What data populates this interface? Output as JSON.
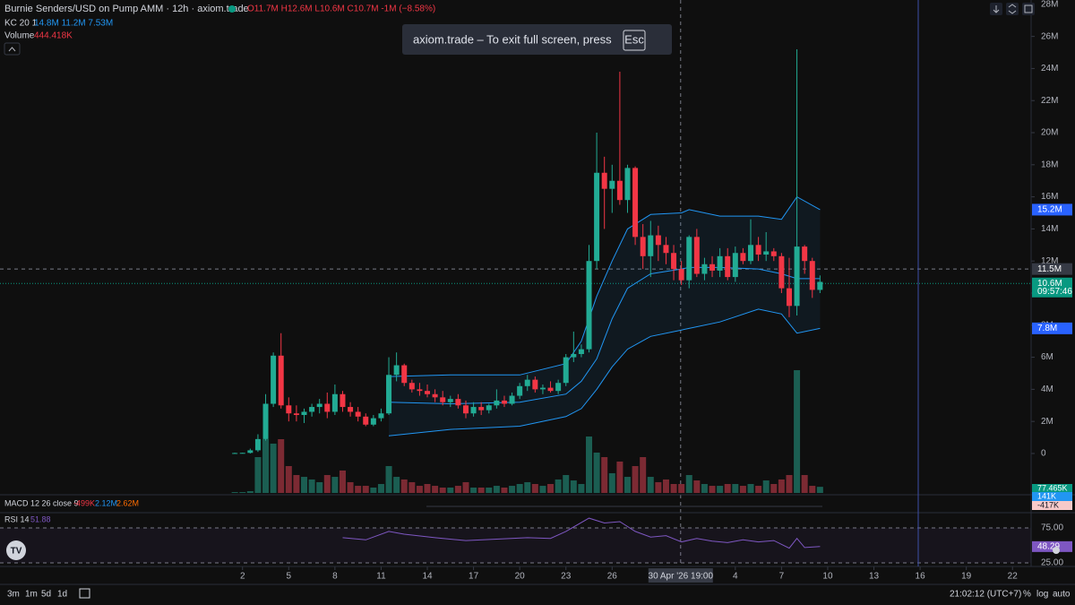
{
  "chart_data": {
    "type": "candlestick",
    "title": "Burnie Senders/USD on Pump AMM · 12h · axiom.trade",
    "ohlc_legend": "O11.7M H12.6M L10.6M C10.7M -1M (−8.58%)",
    "kc_legend": "KC 20 1",
    "kc_values": "14.8M 11.2M 7.53M",
    "volume_legend": "Volume",
    "volume_value": "444.418K",
    "macd_legend": "MACD 12 26 close 9",
    "macd_hist": "-499K",
    "macd_line": "2.12M",
    "macd_signal": "2.62M",
    "rsi_legend": "RSI 14",
    "rsi_value": "51.88",
    "up_color": "#22ab94",
    "down_color": "#f23645",
    "up_volume_color": "#1b5e52",
    "down_volume_color": "#7c2a33",
    "ylim": [
      -2.46,
      28.27
    ],
    "yticks": [
      0,
      {
        "value": 2,
        "label": "2M"
      },
      {
        "value": 4,
        "label": "4M"
      },
      {
        "value": 6,
        "label": "6M"
      },
      {
        "value": 8,
        "label": "8M"
      },
      {
        "value": 10,
        "label": "10M"
      },
      {
        "value": 12,
        "label": "12M"
      },
      {
        "value": 14,
        "label": "14M"
      },
      {
        "value": 16,
        "label": "16M"
      },
      {
        "value": 18,
        "label": "18M"
      },
      {
        "value": 20,
        "label": "20M"
      },
      {
        "value": 22,
        "label": "22M"
      },
      {
        "value": 24,
        "label": "24M"
      },
      {
        "value": 26,
        "label": "26M"
      },
      {
        "value": 28,
        "label": "28M"
      }
    ],
    "xlim": [
      -30.5,
      103.3
    ],
    "xticks": [
      {
        "value": 1,
        "label": "2"
      },
      {
        "value": 7,
        "label": "5"
      },
      {
        "value": 13,
        "label": "8"
      },
      {
        "value": 19,
        "label": "11"
      },
      {
        "value": 25,
        "label": "14"
      },
      {
        "value": 31,
        "label": "17"
      },
      {
        "value": 37,
        "label": "20"
      },
      {
        "value": 43,
        "label": "23"
      },
      {
        "value": 49,
        "label": "26"
      },
      {
        "value": 65,
        "label": "4"
      },
      {
        "value": 71,
        "label": "7"
      },
      {
        "value": 77,
        "label": "10"
      },
      {
        "value": 83,
        "label": "13"
      },
      {
        "value": 89,
        "label": "16"
      },
      {
        "value": 95,
        "label": "19"
      },
      {
        "value": 101,
        "label": "22"
      }
    ],
    "crosshair_x": {
      "value": 57.9,
      "label": "30 Apr '26   19:00"
    },
    "candles": {
      "open": [
        0.02,
        0.03,
        0.04,
        0.2,
        0.9,
        3.1,
        6.1,
        3.0,
        2.5,
        2.4,
        2.6,
        2.9,
        3.1,
        2.6,
        3.7,
        2.9,
        2.6,
        2.3,
        1.8,
        2.2,
        2.5,
        4.9,
        5.5,
        4.4,
        4.0,
        3.9,
        3.7,
        3.5,
        3.2,
        3.4,
        3.0,
        2.5,
        2.9,
        2.7,
        3.0,
        3.3,
        3.1,
        3.6,
        4.2,
        4.6,
        4.0,
        4.1,
        3.9,
        4.4,
        6.0,
        6.2,
        6.5,
        12.0,
        17.5,
        16.5,
        17.0,
        15.8,
        17.8,
        13.5,
        12.3,
        13.6,
        13.0,
        12.5,
        11.5,
        10.8,
        13.5,
        11.2,
        11.8,
        11.4,
        12.3,
        11.0,
        12.5,
        12.0,
        13.0,
        12.4,
        12.6,
        12.3,
        10.3,
        9.2,
        12.9,
        12.0,
        10.2
      ],
      "high": [
        0.05,
        0.05,
        0.3,
        1.2,
        3.7,
        6.3,
        7.5,
        3.5,
        3.0,
        2.8,
        3.1,
        3.4,
        3.8,
        4.3,
        3.9,
        3.2,
        2.9,
        2.5,
        2.4,
        2.8,
        6.0,
        6.3,
        5.6,
        4.6,
        4.4,
        4.3,
        4.0,
        3.9,
        3.6,
        3.7,
        3.3,
        3.2,
        3.2,
        3.1,
        4.0,
        3.6,
        3.8,
        4.4,
        4.9,
        4.8,
        4.3,
        4.5,
        4.6,
        6.2,
        7.6,
        6.8,
        13.0,
        20.0,
        18.5,
        18.0,
        23.8,
        18.0,
        17.9,
        14.3,
        14.5,
        14.2,
        13.5,
        13.0,
        12.0,
        13.6,
        14.0,
        12.2,
        12.3,
        12.8,
        12.8,
        12.9,
        12.8,
        14.6,
        13.5,
        13.8,
        12.8,
        12.5,
        12.2,
        25.2,
        13.0,
        12.2,
        11.1
      ],
      "low": [
        0,
        0,
        0,
        0.1,
        0.8,
        2.9,
        2.8,
        2.0,
        2.0,
        1.9,
        2.3,
        2.5,
        2.2,
        2.4,
        2.6,
        2.3,
        2.0,
        1.7,
        1.7,
        2.0,
        2.4,
        4.5,
        4.2,
        3.8,
        3.6,
        3.5,
        3.2,
        3.0,
        2.9,
        2.8,
        2.2,
        2.3,
        2.4,
        2.5,
        2.8,
        2.9,
        3.0,
        3.4,
        3.9,
        3.8,
        3.7,
        3.8,
        3.7,
        4.2,
        5.7,
        6.0,
        6.3,
        11.5,
        14.0,
        15.0,
        15.5,
        15.0,
        13.0,
        11.5,
        11.0,
        12.0,
        11.8,
        10.8,
        10.5,
        10.3,
        11.0,
        10.8,
        11.0,
        11.0,
        10.8,
        10.7,
        11.8,
        11.8,
        12.0,
        12.0,
        12.0,
        10.0,
        8.5,
        8.6,
        11.2,
        9.7,
        10.0
      ],
      "close": [
        0.03,
        0.04,
        0.2,
        0.9,
        3.1,
        6.1,
        3.0,
        2.5,
        2.4,
        2.6,
        2.9,
        3.1,
        2.6,
        3.7,
        2.9,
        2.6,
        2.3,
        1.8,
        2.2,
        2.5,
        4.9,
        5.5,
        4.4,
        4.0,
        3.9,
        3.7,
        3.5,
        3.2,
        3.4,
        3.0,
        2.5,
        2.9,
        2.7,
        3.0,
        3.3,
        3.1,
        3.6,
        4.2,
        4.6,
        4.0,
        4.1,
        3.9,
        4.4,
        6.0,
        6.2,
        6.5,
        12.0,
        17.5,
        16.5,
        17.0,
        15.8,
        17.8,
        13.5,
        12.3,
        13.6,
        13.0,
        12.5,
        11.5,
        10.8,
        13.5,
        11.2,
        11.8,
        11.4,
        12.3,
        11.0,
        12.5,
        12.0,
        13.0,
        12.4,
        12.6,
        12.3,
        10.3,
        9.2,
        12.9,
        12.0,
        10.2,
        10.7
      ]
    },
    "volume": [
      11,
      11,
      23,
      452,
      678,
      622,
      678,
      339,
      226,
      203,
      170,
      136,
      226,
      203,
      283,
      136,
      90,
      90,
      68,
      113,
      339,
      203,
      170,
      136,
      90,
      113,
      90,
      68,
      68,
      90,
      136,
      68,
      68,
      68,
      90,
      68,
      90,
      113,
      136,
      113,
      90,
      113,
      170,
      226,
      158,
      113,
      712,
      509,
      452,
      249,
      396,
      203,
      339,
      452,
      203,
      136,
      170,
      113,
      113,
      226,
      158,
      113,
      90,
      90,
      113,
      113,
      90,
      113,
      90,
      158,
      113,
      170,
      226,
      1548,
      226,
      90,
      77.465
    ],
    "vlim": [
      0,
      1695
    ],
    "kc": {
      "color": "#2196f3",
      "x": [
        20,
        28,
        37,
        43,
        45,
        47,
        49,
        51,
        54,
        58,
        59,
        63,
        68,
        71,
        73,
        76
      ],
      "upper": [
        4.8,
        4.9,
        4.9,
        5.6,
        7.0,
        9.8,
        12,
        14,
        14.9,
        15.0,
        15.2,
        14.8,
        14.8,
        14.6,
        16,
        15.2
      ],
      "middle": [
        3.2,
        3.1,
        3.2,
        3.7,
        4.5,
        5.9,
        8.4,
        10.3,
        11.2,
        11.5,
        11.6,
        11.6,
        11.5,
        11.2,
        10.9,
        10.9
      ],
      "lower": [
        1.1,
        1.5,
        1.7,
        2.3,
        2.8,
        4.0,
        5.4,
        6.5,
        7.3,
        7.7,
        7.8,
        8.2,
        9.0,
        8.7,
        7.5,
        7.8
      ]
    },
    "price_labels": [
      {
        "value": 15.2,
        "label": "15.2M",
        "color": "#2962ff"
      },
      {
        "value": 11.5,
        "label": "11.5M",
        "color": "#363a45",
        "line": "dashed"
      },
      {
        "value": 10.6,
        "label": "10.6M",
        "sublabel": "09:57:46",
        "color": "#089981",
        "line": "dotted"
      },
      {
        "value": 7.8,
        "label": "7.8M",
        "color": "#2962ff"
      }
    ],
    "rsi": {
      "color": "#7e57c2",
      "x": [
        14,
        17,
        20,
        22,
        26,
        30,
        34,
        38,
        41,
        43,
        46,
        48,
        50,
        52,
        54,
        56,
        58,
        60,
        62,
        64,
        66,
        68,
        70,
        72,
        73,
        74,
        76
      ],
      "values": [
        61,
        58,
        70,
        66,
        61,
        57,
        59,
        61,
        60,
        70,
        89,
        82,
        84,
        70,
        62,
        64,
        55,
        60,
        56,
        54,
        58,
        55,
        57,
        46,
        60,
        47,
        48.29
      ],
      "value_label": "48.29",
      "ylim": [
        19.9,
        96.8
      ],
      "yticks": [
        {
          "value": 75,
          "label": "75.00"
        },
        {
          "value": 25,
          "label": "25.00"
        }
      ]
    },
    "side_labels": {
      "volume": "77.465K",
      "macd_a": "141K",
      "macd_b": "-417K"
    },
    "toast": {
      "text": "axiom.trade – To exit full screen, press",
      "key": "Esc"
    },
    "toolbar": {
      "ranges": [
        "3m",
        "1m",
        "5d",
        "1d"
      ],
      "clock": "21:02:12 (UTC+7)",
      "percent": "%",
      "log": "log",
      "auto": "auto"
    }
  }
}
